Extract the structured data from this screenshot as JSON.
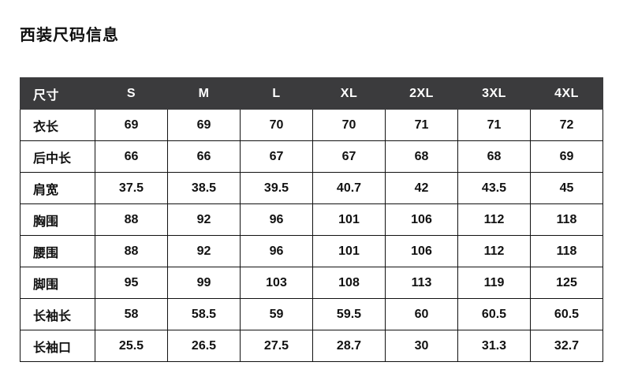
{
  "page_title": "西装尺码信息",
  "chart_data": {
    "type": "table",
    "title": "西装尺码信息",
    "columns": [
      "尺寸",
      "S",
      "M",
      "L",
      "XL",
      "2XL",
      "3XL",
      "4XL"
    ],
    "rows": [
      {
        "label": "衣长",
        "values": [
          "69",
          "69",
          "70",
          "70",
          "71",
          "71",
          "72"
        ]
      },
      {
        "label": "后中长",
        "values": [
          "66",
          "66",
          "67",
          "67",
          "68",
          "68",
          "69"
        ]
      },
      {
        "label": "肩宽",
        "values": [
          "37.5",
          "38.5",
          "39.5",
          "40.7",
          "42",
          "43.5",
          "45"
        ]
      },
      {
        "label": "胸围",
        "values": [
          "88",
          "92",
          "96",
          "101",
          "106",
          "112",
          "118"
        ]
      },
      {
        "label": "腰围",
        "values": [
          "88",
          "92",
          "96",
          "101",
          "106",
          "112",
          "118"
        ]
      },
      {
        "label": "脚围",
        "values": [
          "95",
          "99",
          "103",
          "108",
          "113",
          "119",
          "125"
        ]
      },
      {
        "label": "长袖长",
        "values": [
          "58",
          "58.5",
          "59",
          "59.5",
          "60",
          "60.5",
          "60.5"
        ]
      },
      {
        "label": "长袖口",
        "values": [
          "25.5",
          "26.5",
          "27.5",
          "28.7",
          "30",
          "31.3",
          "32.7"
        ]
      }
    ],
    "layout": {
      "header_row": true,
      "first_column_is_label": true,
      "grid": true
    },
    "colors": {
      "header_bg": "#3b3b3d",
      "header_text": "#ffffff",
      "body_text": "#111111",
      "border": "#111111",
      "background": "#ffffff"
    }
  }
}
